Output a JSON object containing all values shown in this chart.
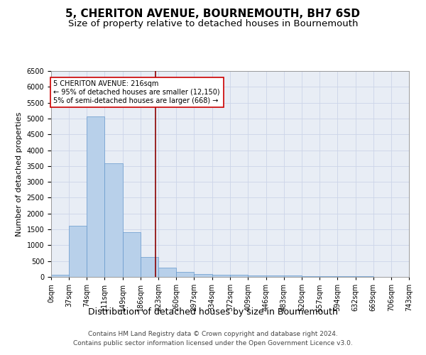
{
  "title": "5, CHERITON AVENUE, BOURNEMOUTH, BH7 6SD",
  "subtitle": "Size of property relative to detached houses in Bournemouth",
  "xlabel": "Distribution of detached houses by size in Bournemouth",
  "ylabel": "Number of detached properties",
  "footer_lines": [
    "Contains HM Land Registry data © Crown copyright and database right 2024.",
    "Contains public sector information licensed under the Open Government Licence v3.0."
  ],
  "bin_edges": [
    0,
    37,
    74,
    111,
    149,
    186,
    223,
    260,
    297,
    334,
    372,
    409,
    446,
    483,
    520,
    557,
    594,
    632,
    669,
    706,
    743
  ],
  "bar_heights": [
    75,
    1625,
    5060,
    3580,
    1420,
    620,
    290,
    155,
    100,
    75,
    60,
    50,
    50,
    35,
    30,
    25,
    20,
    15,
    10,
    10
  ],
  "bar_color": "#b8d0ea",
  "bar_edge_color": "#6699cc",
  "property_size": 216,
  "vline_color": "#8b0000",
  "annotation_text": "5 CHERITON AVENUE: 216sqm\n← 95% of detached houses are smaller (12,150)\n5% of semi-detached houses are larger (668) →",
  "annotation_box_color": "white",
  "annotation_box_edge": "#cc0000",
  "ylim": [
    0,
    6500
  ],
  "yticks": [
    0,
    500,
    1000,
    1500,
    2000,
    2500,
    3000,
    3500,
    4000,
    4500,
    5000,
    5500,
    6000,
    6500
  ],
  "grid_color": "#ccd5e8",
  "bg_color": "#e8edf5",
  "title_fontsize": 11,
  "subtitle_fontsize": 9.5,
  "xlabel_fontsize": 9,
  "ylabel_fontsize": 8,
  "tick_fontsize": 7,
  "footer_fontsize": 6.5
}
